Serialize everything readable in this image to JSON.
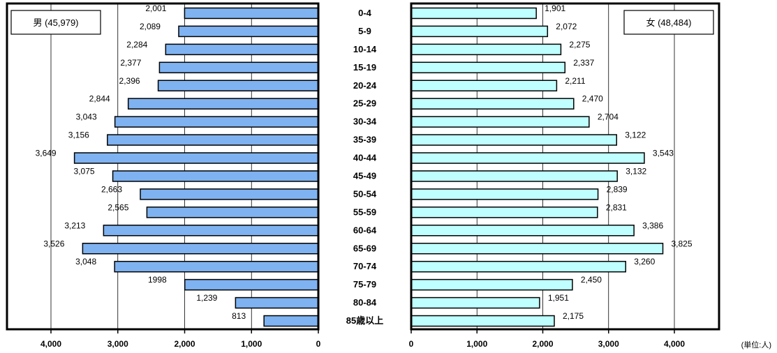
{
  "chart_data": {
    "type": "bar",
    "subtype": "population-pyramid",
    "categories": [
      "0-4",
      "5-9",
      "10-14",
      "15-19",
      "20-24",
      "25-29",
      "30-34",
      "35-39",
      "40-44",
      "45-49",
      "50-54",
      "55-59",
      "60-64",
      "65-69",
      "70-74",
      "75-79",
      "80-84",
      "85歳以上"
    ],
    "series": [
      {
        "name": "男 (45,979)",
        "color": "#7FB2F0",
        "values": [
          2001,
          2089,
          2284,
          2377,
          2396,
          2844,
          3043,
          3156,
          3649,
          3075,
          2663,
          2565,
          3213,
          3526,
          3048,
          1998,
          1239,
          813
        ],
        "labels": [
          "2,001",
          "2,089",
          "2,284",
          "2,377",
          "2,396",
          "2,844",
          "3,043",
          "3,156",
          "3,649",
          "3,075",
          "2,663",
          "2,565",
          "3,213",
          "3,526",
          "3,048",
          "1998",
          "1,239",
          "813"
        ]
      },
      {
        "name": "女 (48,484)",
        "color": "#BFFFFF",
        "values": [
          1901,
          2072,
          2275,
          2337,
          2211,
          2470,
          2704,
          3122,
          3543,
          3132,
          2839,
          2831,
          3386,
          3825,
          3260,
          2450,
          1951,
          2175
        ],
        "labels": [
          "1,901",
          "2,072",
          "2,275",
          "2,337",
          "2,211",
          "2,470",
          "2,704",
          "3,122",
          "3,543",
          "3,132",
          "2,839",
          "2,831",
          "3,386",
          "3,825",
          "3,260",
          "2,450",
          "1,951",
          "2,175"
        ]
      }
    ],
    "xlim": [
      0,
      4000
    ],
    "ticks": [
      0,
      1000,
      2000,
      3000,
      4000
    ],
    "tick_labels": [
      "0",
      "1,000",
      "2,000",
      "3,000",
      "4,000"
    ],
    "unit_label": "(単位:人)",
    "legend": {
      "male": "男 (45,979)",
      "female": "女 (48,484)"
    },
    "grid": true
  }
}
